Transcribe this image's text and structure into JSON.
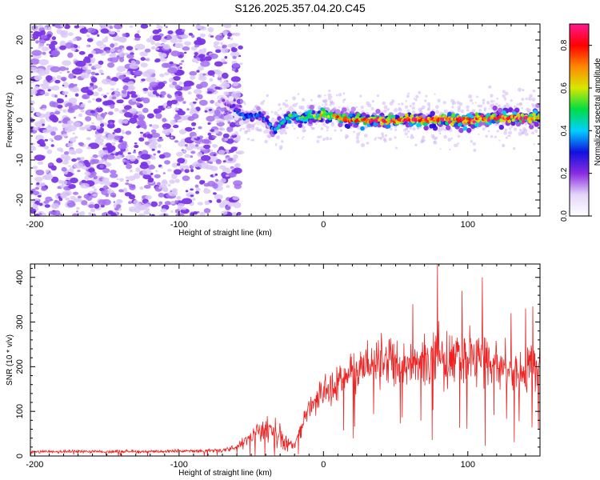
{
  "title": "S126.2025.357.04.20.C45",
  "colors": {
    "snr_line": "#ee2222",
    "frame": "#000000",
    "scatter_base": "#7b35e6"
  },
  "chart_data": [
    {
      "type": "heatmap",
      "name": "spectrogram",
      "xlabel": "Height of straight line (km)",
      "ylabel": "Frequency (Hz)",
      "xlim": [
        -203,
        150
      ],
      "ylim": [
        -24,
        24
      ],
      "xticks": [
        -200,
        -100,
        0,
        100
      ],
      "yticks": [
        -20,
        -10,
        0,
        10,
        20
      ],
      "colorbar": {
        "label": "Normalized spectral amplitude",
        "range": [
          0,
          0.9
        ],
        "ticks": [
          0.0,
          0.2,
          0.4,
          0.6,
          0.8
        ],
        "tick_labels": [
          "0.0",
          "0.2",
          "0.4",
          "0.6",
          "0.8"
        ],
        "colormap": [
          "#ffffff",
          "#e3d6f8",
          "#8a2be2",
          "#1010e0",
          "#00d0ff",
          "#00dd44",
          "#d8e800",
          "#ff8800",
          "#ff0000",
          "#ff1890"
        ]
      },
      "noise_region": {
        "x_from": -203,
        "x_to": -65,
        "amplitude": 0.1
      },
      "signal_track": {
        "x": [
          -70,
          -62,
          -55,
          -50,
          -45,
          -40,
          -35,
          -30,
          -25,
          -20,
          -15,
          -10,
          -5,
          0,
          10,
          20,
          40,
          60,
          80,
          100,
          120,
          140,
          150
        ],
        "freq": [
          5,
          3,
          1,
          0.5,
          1.5,
          0,
          -2.5,
          -1,
          0.5,
          1.5,
          0,
          1,
          0.5,
          1.5,
          0.5,
          0,
          0,
          0,
          0,
          0,
          0.5,
          0.5,
          0.5
        ],
        "amplitude": [
          0.15,
          0.25,
          0.35,
          0.4,
          0.3,
          0.3,
          0.35,
          0.4,
          0.45,
          0.45,
          0.5,
          0.5,
          0.55,
          0.6,
          0.65,
          0.7,
          0.75,
          0.75,
          0.8,
          0.8,
          0.75,
          0.75,
          0.7
        ]
      }
    },
    {
      "type": "line",
      "name": "snr",
      "xlabel": "Height of straight line (km)",
      "ylabel": "SNR (10 * v/v)",
      "xlim": [
        -203,
        150
      ],
      "ylim": [
        0,
        430
      ],
      "xticks": [
        -200,
        -100,
        0,
        100
      ],
      "yticks": [
        0,
        100,
        200,
        300,
        400
      ],
      "envelope": {
        "x": [
          -203,
          -180,
          -150,
          -120,
          -90,
          -70,
          -60,
          -55,
          -50,
          -45,
          -40,
          -35,
          -30,
          -25,
          -20,
          -15,
          -10,
          -5,
          0,
          5,
          10,
          15,
          20,
          30,
          40,
          50,
          60,
          70,
          80,
          90,
          100,
          110,
          120,
          130,
          140,
          150
        ],
        "mean": [
          10,
          10,
          10,
          10,
          11,
          13,
          20,
          30,
          45,
          55,
          60,
          55,
          45,
          30,
          25,
          60,
          110,
          130,
          140,
          150,
          160,
          175,
          190,
          205,
          215,
          210,
          205,
          215,
          225,
          210,
          215,
          220,
          205,
          200,
          195,
          200
        ],
        "spread": [
          5,
          5,
          5,
          5,
          6,
          7,
          12,
          20,
          30,
          40,
          50,
          45,
          40,
          25,
          15,
          30,
          40,
          45,
          50,
          55,
          60,
          65,
          75,
          80,
          85,
          85,
          85,
          90,
          100,
          95,
          95,
          95,
          90,
          90,
          90,
          90
        ]
      },
      "peaks": [
        {
          "x": 79,
          "y": 430
        },
        {
          "x": 110,
          "y": 400
        },
        {
          "x": 96,
          "y": 370
        },
        {
          "x": 62,
          "y": 340
        },
        {
          "x": 145,
          "y": 335
        },
        {
          "x": 140,
          "y": 330
        },
        {
          "x": 130,
          "y": 320
        }
      ]
    }
  ]
}
